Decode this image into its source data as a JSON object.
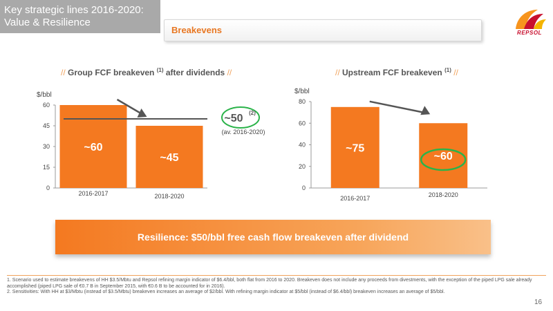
{
  "header": {
    "title_line1": "Key strategic lines 2016-2020:",
    "title_line2": "Value & Resilience",
    "section": "Breakevens",
    "logo_text": "REPSOL"
  },
  "chart_data": [
    {
      "type": "bar",
      "title": "Group FCF breakeven (1) after dividends",
      "ylabel": "$/bbl",
      "categories": [
        "2016-2017",
        "2018-2020"
      ],
      "values": [
        60,
        45
      ],
      "data_labels": [
        "~60",
        "~45"
      ],
      "ylim": [
        0,
        60
      ],
      "yticks": [
        0,
        15,
        30,
        45,
        60
      ],
      "reference_line": 50,
      "reference_label": "~50",
      "reference_label_sup": "(2)",
      "reference_note": "(av. 2016-2020)",
      "bar_color": "#f47920"
    },
    {
      "type": "bar",
      "title": "Upstream FCF breakeven (1)",
      "ylabel": "$/bbl",
      "categories": [
        "2016-2017",
        "2018-2020"
      ],
      "values": [
        75,
        60
      ],
      "data_labels": [
        "~75",
        "~60"
      ],
      "ylim": [
        0,
        80
      ],
      "yticks": [
        0,
        20,
        40,
        60,
        80
      ],
      "bar_color": "#f47920"
    }
  ],
  "titles": {
    "left": {
      "prefix": "//",
      "text": "Group FCF breakeven",
      "sup": "(1)",
      "rest": "after dividends",
      "suffix": "//"
    },
    "right": {
      "prefix": "//",
      "text": "Upstream FCF breakeven",
      "sup": "(1)",
      "suffix": "//"
    }
  },
  "resilience": "Resilience: $50/bbl free cash flow breakeven after dividend",
  "footnotes": [
    "1. Scenario used to estimate breakevens of HH $3.5/Mbtu and  Repsol refining margin indicator of $6.4/bbl, both flat from 2016 to 2020. Breakeven does not include any proceeds from divestments, with the exception of the piped LPG sale already accomplished (piped LPG sale of €0.7 B in September 2015, with €0.6 B to be accounted for in 2016).",
    "2. Sensitivities: With HH at $3/Mbtu (instead of $3.5/Mbtu) breakeven increases an average of $2/bbl. With refining margin indicator at $5/bbl (instead of $6.4/bbl) breakeven increases an average of $5/bbl."
  ],
  "page_number": "16",
  "colors": {
    "accent": "#f47920",
    "highlight_circle": "#2bb34a",
    "arrow": "#555555",
    "header_bg": "#a9a9a9"
  }
}
